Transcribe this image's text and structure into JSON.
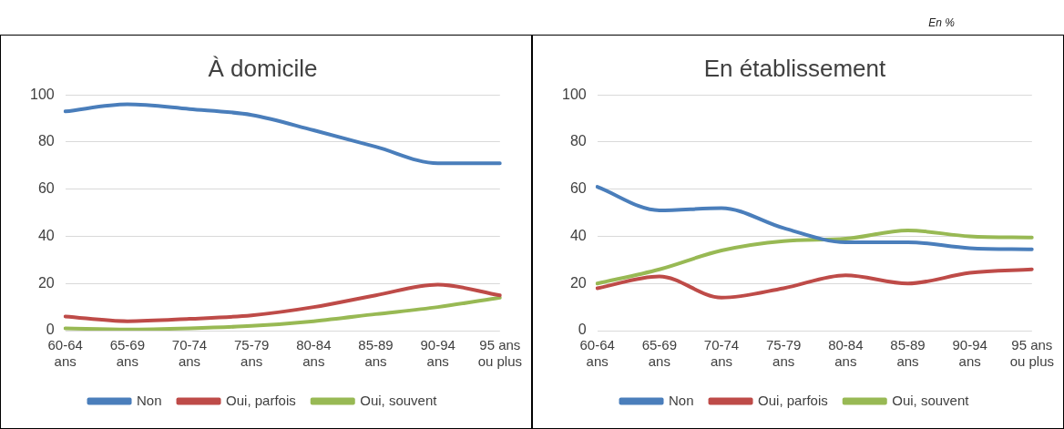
{
  "chart_data": [
    {
      "type": "line",
      "title": "À domicile",
      "categories": [
        "60-64\nans",
        "65-69\nans",
        "70-74\nans",
        "75-79\nans",
        "80-84\nans",
        "85-89\nans",
        "90-94\nans",
        "95 ans\nou plus"
      ],
      "series": [
        {
          "name": "Non",
          "color": "#4a7ebb",
          "values": [
            93,
            96,
            94,
            91.5,
            85,
            78,
            71,
            71
          ]
        },
        {
          "name": "Oui, parfois",
          "color": "#be4b48",
          "values": [
            6,
            4,
            5,
            6.5,
            10,
            15,
            19.5,
            15
          ]
        },
        {
          "name": "Oui, souvent",
          "color": "#98b954",
          "values": [
            1,
            0.5,
            1,
            2,
            4,
            7,
            10,
            14
          ]
        }
      ],
      "ylim": [
        0,
        100
      ],
      "yticks": [
        0,
        20,
        40,
        60,
        80,
        100
      ],
      "grid": "y",
      "legend": "bottom",
      "marker": "none",
      "line_style": "solid"
    },
    {
      "type": "line",
      "title": "En établissement",
      "categories": [
        "60-64\nans",
        "65-69\nans",
        "70-74\nans",
        "75-79\nans",
        "80-84\nans",
        "85-89\nans",
        "90-94\nans",
        "95 ans\nou plus"
      ],
      "series": [
        {
          "name": "Non",
          "color": "#4a7ebb",
          "values": [
            61,
            51,
            52,
            43.5,
            37.5,
            37.5,
            35,
            34.5
          ]
        },
        {
          "name": "Oui, parfois",
          "color": "#be4b48",
          "values": [
            18,
            23,
            14,
            18,
            23.5,
            20,
            24.5,
            26
          ]
        },
        {
          "name": "Oui, souvent",
          "color": "#98b954",
          "values": [
            20,
            26,
            34,
            38,
            39,
            42.5,
            40,
            39.5
          ]
        }
      ],
      "ylim": [
        0,
        100
      ],
      "yticks": [
        0,
        20,
        40,
        60,
        80,
        100
      ],
      "grid": "y",
      "legend": "bottom",
      "marker": "none",
      "line_style": "solid",
      "annotations": [
        "En %"
      ]
    }
  ]
}
